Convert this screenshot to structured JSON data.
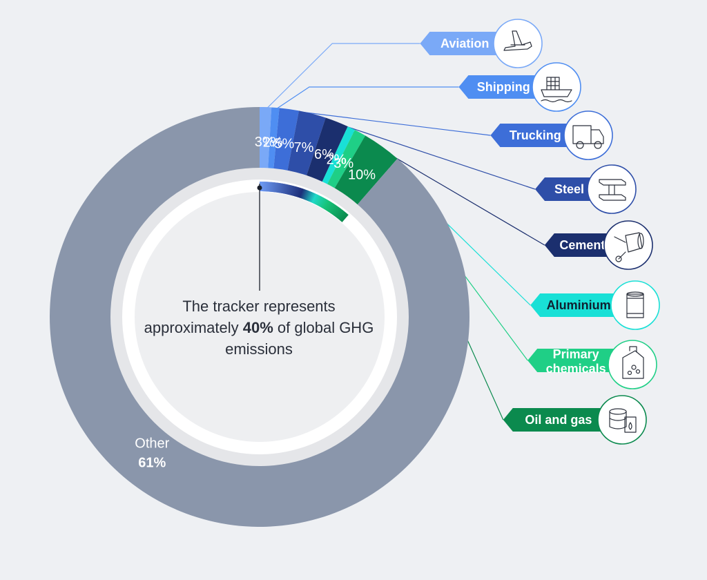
{
  "chart_data": {
    "type": "pie",
    "style": "donut",
    "categories": [
      "Aviation",
      "Shipping",
      "Trucking",
      "Steel",
      "Cement",
      "Aluminium",
      "Primary chemicals",
      "Oil and gas",
      "Other"
    ],
    "values": [
      3,
      2,
      5,
      7,
      6,
      2,
      3,
      10,
      61
    ],
    "value_labels": [
      "3%",
      "2%",
      "5%",
      "7%",
      "6%",
      "2%",
      "3%",
      "10%",
      "61%"
    ],
    "colors": [
      "#7aa9f7",
      "#4f8ef2",
      "#3d6ed8",
      "#2e4ea8",
      "#1b2f6e",
      "#19e0d6",
      "#1fcf86",
      "#0b8a4e",
      "#8a96ab"
    ],
    "other_label": "Other",
    "other_value_label": "61%"
  },
  "center": {
    "text_before": "The tracker represents approximately ",
    "highlight": "40%",
    "text_after": " of global GHG emissions"
  },
  "callouts": [
    {
      "label": "Aviation",
      "icon": "airplane-icon",
      "color": "#7aa9f7"
    },
    {
      "label": "Shipping",
      "icon": "ship-icon",
      "color": "#4f8ef2"
    },
    {
      "label": "Trucking",
      "icon": "truck-icon",
      "color": "#3d6ed8"
    },
    {
      "label": "Steel",
      "icon": "steel-beam-icon",
      "color": "#2e4ea8"
    },
    {
      "label": "Cement",
      "icon": "cement-mixer-icon",
      "color": "#1b2f6e"
    },
    {
      "label": "Aluminium",
      "icon": "can-icon",
      "color": "#19e0d6"
    },
    {
      "label": "Primary chemicals",
      "icon": "chemical-canister-icon",
      "color": "#1fcf86"
    },
    {
      "label": "Oil and gas",
      "icon": "oil-barrel-icon",
      "color": "#0b8a4e"
    }
  ]
}
